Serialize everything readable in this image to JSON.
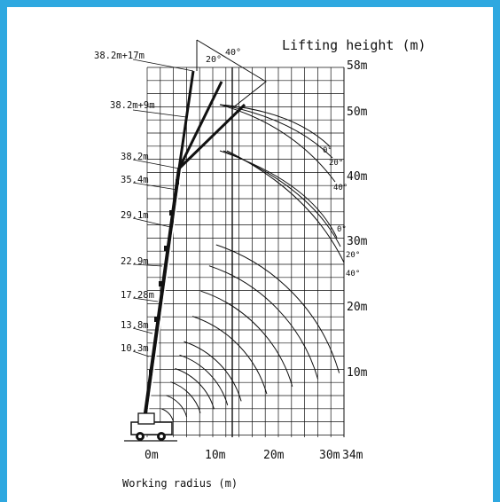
{
  "titles": {
    "lifting_height": "Lifting height (m)",
    "working_radius": "Working radius (m)"
  },
  "height_ticks": [
    {
      "label": "58m",
      "value": 58
    },
    {
      "label": "50m",
      "value": 50
    },
    {
      "label": "40m",
      "value": 40
    },
    {
      "label": "30m",
      "value": 30
    },
    {
      "label": "20m",
      "value": 20
    },
    {
      "label": "10m",
      "value": 10
    }
  ],
  "radius_ticks": [
    {
      "label": "0m",
      "value": 0
    },
    {
      "label": "10m",
      "value": 10
    },
    {
      "label": "20m",
      "value": 20
    },
    {
      "label": "30m",
      "value": 30
    },
    {
      "label": "34m",
      "value": 34
    }
  ],
  "boom_lengths": [
    "38.2m+17m",
    "38.2m+9m",
    "38.2m",
    "35.4m",
    "29.1m",
    "22.9m",
    "17.28m",
    "13.8m",
    "10.3m"
  ],
  "jib_angles_top": [
    "20°",
    "40°"
  ],
  "jib_angles_17m": [
    "0°",
    "20°",
    "40°"
  ],
  "jib_angles_9m": [
    "0°",
    "20°",
    "40°"
  ],
  "colors": {
    "frame": "#2ea8e0",
    "ink": "#111111",
    "grid": "#111111"
  }
}
